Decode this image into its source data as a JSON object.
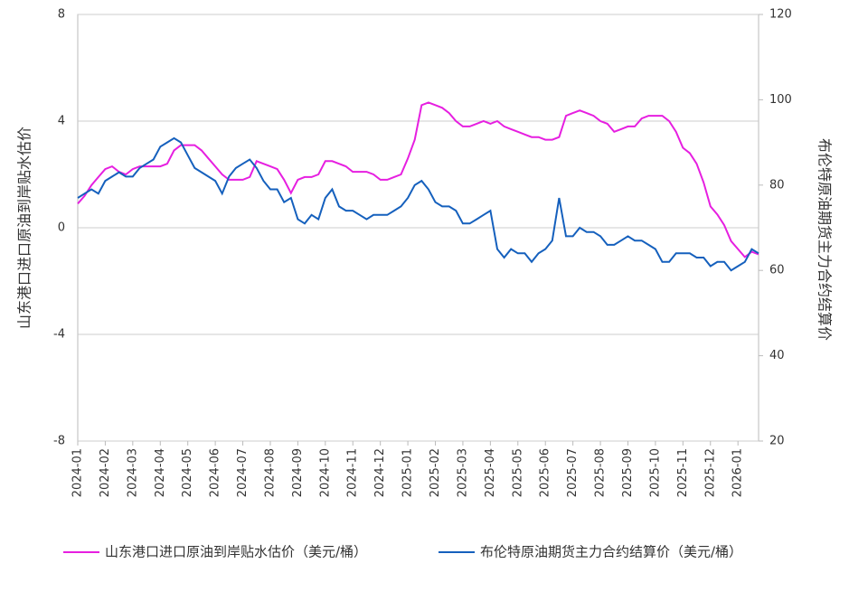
{
  "chart_data": {
    "type": "line",
    "y_title": "山东港口进口原油到岸贴水估价",
    "y2_title": "布伦特原油期货主力合约结算价",
    "categories": [
      "2024-01",
      null,
      null,
      null,
      "2024-02",
      null,
      null,
      null,
      "2024-03",
      null,
      null,
      null,
      "2024-04",
      null,
      null,
      null,
      "2024-05",
      null,
      null,
      null,
      "2024-06",
      null,
      null,
      null,
      "2024-07",
      null,
      null,
      null,
      "2024-08",
      null,
      null,
      null,
      "2024-09",
      null,
      null,
      null,
      "2024-10",
      null,
      null,
      null,
      "2024-11",
      null,
      null,
      null,
      "2024-12",
      null,
      null,
      null,
      "2025-01",
      null,
      null,
      null,
      "2025-02",
      null,
      null,
      null,
      "2025-03",
      null,
      null,
      null,
      "2025-04",
      null,
      null,
      null,
      "2025-05",
      null,
      null,
      null,
      "2025-06",
      null,
      null,
      null,
      "2025-07",
      null,
      null,
      null,
      "2025-08",
      null,
      null,
      null,
      "2025-09",
      null,
      null,
      null,
      "2025-10",
      null,
      null,
      null,
      "2025-11",
      null,
      null,
      null,
      "2025-12",
      null,
      null,
      null,
      "2026-01",
      null,
      null,
      null
    ],
    "series": [
      {
        "name": "山东港口进口原油到岸贴水估价（美元/桶）",
        "color": "#e61fe0",
        "axis": "y",
        "values": [
          0.9,
          1.2,
          1.6,
          1.9,
          2.2,
          2.3,
          2.1,
          2.0,
          2.2,
          2.3,
          2.3,
          2.3,
          2.3,
          2.4,
          2.9,
          3.1,
          3.1,
          3.1,
          2.9,
          2.6,
          2.3,
          2.0,
          1.8,
          1.8,
          1.8,
          1.9,
          2.5,
          2.4,
          2.3,
          2.2,
          1.8,
          1.3,
          1.8,
          1.9,
          1.9,
          2.0,
          2.5,
          2.5,
          2.4,
          2.3,
          2.1,
          2.1,
          2.1,
          2.0,
          1.8,
          1.8,
          1.9,
          2.0,
          2.6,
          3.3,
          4.6,
          4.7,
          4.6,
          4.5,
          4.3,
          4.0,
          3.8,
          3.8,
          3.9,
          4.0,
          3.9,
          4.0,
          3.8,
          3.7,
          3.6,
          3.5,
          3.4,
          3.4,
          3.3,
          3.3,
          3.4,
          4.2,
          4.3,
          4.4,
          4.3,
          4.2,
          4.0,
          3.9,
          3.6,
          3.7,
          3.8,
          3.8,
          4.1,
          4.2,
          4.2,
          4.2,
          4.0,
          3.6,
          3.0,
          2.8,
          2.4,
          1.7,
          0.8,
          0.5,
          0.1,
          -0.5,
          -0.8,
          -1.1,
          -0.9,
          -1.0
        ]
      },
      {
        "name": "布伦特原油期货主力合约结算价（美元/桶）",
        "color": "#1560bd",
        "axis": "y2",
        "values": [
          77,
          78,
          79,
          78,
          81,
          82,
          83,
          82,
          82,
          84,
          85,
          86,
          89,
          90,
          91,
          90,
          87,
          84,
          83,
          82,
          81,
          78,
          82,
          84,
          85,
          86,
          84,
          81,
          79,
          79,
          76,
          77,
          72,
          71,
          73,
          72,
          77,
          79,
          75,
          74,
          74,
          73,
          72,
          73,
          73,
          73,
          74,
          75,
          77,
          80,
          81,
          79,
          76,
          75,
          75,
          74,
          71,
          71,
          72,
          73,
          74,
          65,
          63,
          65,
          64,
          64,
          62,
          64,
          65,
          67,
          77,
          68,
          68,
          70,
          69,
          69,
          68,
          66,
          66,
          67,
          68,
          67,
          67,
          66,
          65,
          62,
          62,
          64,
          64,
          64,
          63,
          63,
          61,
          62,
          62,
          60,
          61,
          62,
          65,
          64
        ]
      }
    ],
    "ylim": [
      -8,
      8
    ],
    "yticks": [
      -8,
      -4,
      0,
      4,
      8
    ],
    "y2lim": [
      20,
      120
    ],
    "y2ticks": [
      20,
      40,
      60,
      80,
      100,
      120
    ],
    "grid": true
  }
}
